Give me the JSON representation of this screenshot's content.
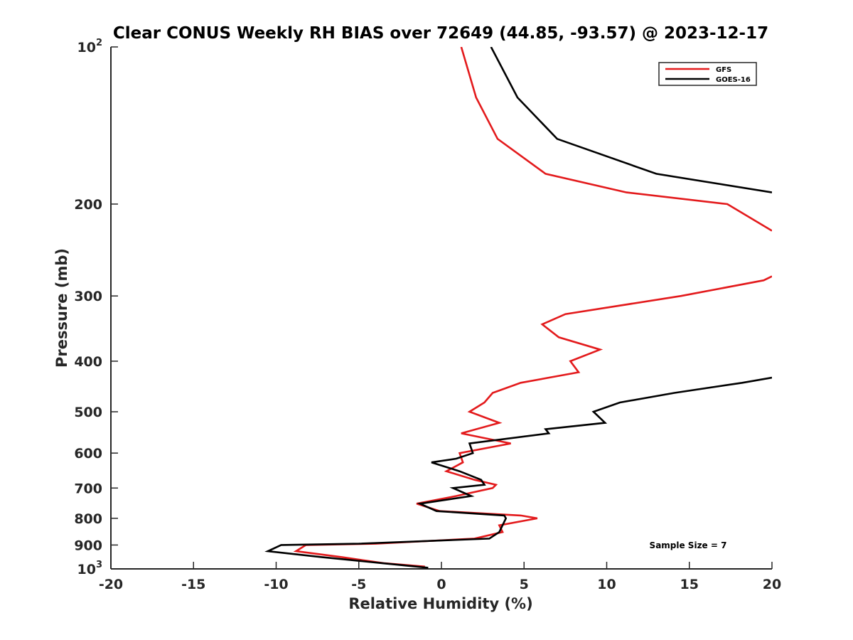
{
  "chart_data": {
    "type": "line",
    "title": "Clear CONUS Weekly RH BIAS over 72649 (44.85, -93.57) @ 2023-12-17",
    "xlabel": "Relative Humidity (%)",
    "ylabel": "Pressure (mb)",
    "xlim": [
      -20,
      20
    ],
    "ylim": [
      100,
      1000
    ],
    "y_scale": "log",
    "y_reversed": true,
    "grid": false,
    "legend_position": "top-right",
    "x_ticks": [
      "-20",
      "-15",
      "-10",
      "-5",
      "0",
      "5",
      "10",
      "15",
      "20"
    ],
    "y_ticks": [
      {
        "value": 100,
        "base": "10",
        "exp": "2"
      },
      {
        "value": 200,
        "label": "200"
      },
      {
        "value": 300,
        "label": "300"
      },
      {
        "value": 400,
        "label": "400"
      },
      {
        "value": 500,
        "label": "500"
      },
      {
        "value": 600,
        "label": "600"
      },
      {
        "value": 700,
        "label": "700"
      },
      {
        "value": 800,
        "label": "800"
      },
      {
        "value": 900,
        "label": "900"
      },
      {
        "value": 1000,
        "base": "10",
        "exp": "3"
      }
    ],
    "annotation": "Sample Size = 7",
    "series": [
      {
        "name": "GFS",
        "color": "#e31a1c",
        "segments": [
          [
            {
              "x": 1.2,
              "y": 100
            },
            {
              "x": 2.1,
              "y": 125
            },
            {
              "x": 3.4,
              "y": 150
            },
            {
              "x": 6.3,
              "y": 175
            },
            {
              "x": 11.2,
              "y": 190
            },
            {
              "x": 17.3,
              "y": 200
            },
            {
              "x": 20.0,
              "y": 225
            }
          ],
          [
            {
              "x": 20.0,
              "y": 275
            },
            {
              "x": 19.5,
              "y": 280
            },
            {
              "x": 14.5,
              "y": 300
            },
            {
              "x": 7.5,
              "y": 325
            },
            {
              "x": 6.1,
              "y": 340
            },
            {
              "x": 7.1,
              "y": 360
            },
            {
              "x": 9.6,
              "y": 380
            },
            {
              "x": 7.8,
              "y": 400
            },
            {
              "x": 8.3,
              "y": 420
            },
            {
              "x": 4.8,
              "y": 440
            },
            {
              "x": 3.1,
              "y": 460
            },
            {
              "x": 2.6,
              "y": 480
            },
            {
              "x": 1.7,
              "y": 500
            },
            {
              "x": 3.5,
              "y": 525
            },
            {
              "x": 1.2,
              "y": 550
            },
            {
              "x": 4.2,
              "y": 575
            },
            {
              "x": 1.1,
              "y": 600
            },
            {
              "x": 1.3,
              "y": 625
            },
            {
              "x": 0.3,
              "y": 650
            },
            {
              "x": 2.0,
              "y": 675
            },
            {
              "x": 3.3,
              "y": 690
            },
            {
              "x": 3.1,
              "y": 700
            },
            {
              "x": 0.9,
              "y": 725
            },
            {
              "x": -1.5,
              "y": 750
            },
            {
              "x": -0.1,
              "y": 775
            },
            {
              "x": 4.8,
              "y": 790
            },
            {
              "x": 5.8,
              "y": 800
            },
            {
              "x": 3.5,
              "y": 825
            },
            {
              "x": 3.7,
              "y": 850
            },
            {
              "x": 2.0,
              "y": 875
            },
            {
              "x": -4.0,
              "y": 895
            },
            {
              "x": -8.2,
              "y": 900
            },
            {
              "x": -8.8,
              "y": 925
            },
            {
              "x": -6.0,
              "y": 950
            },
            {
              "x": -3.5,
              "y": 975
            },
            {
              "x": -1.0,
              "y": 990
            }
          ]
        ]
      },
      {
        "name": "GOES-16",
        "color": "#000000",
        "segments": [
          [
            {
              "x": 3.0,
              "y": 100
            },
            {
              "x": 4.6,
              "y": 125
            },
            {
              "x": 7.0,
              "y": 150
            },
            {
              "x": 13.0,
              "y": 175
            },
            {
              "x": 20.0,
              "y": 190
            }
          ],
          [
            {
              "x": 20.0,
              "y": 430
            },
            {
              "x": 18.2,
              "y": 440
            },
            {
              "x": 14.1,
              "y": 460
            },
            {
              "x": 10.8,
              "y": 480
            },
            {
              "x": 9.2,
              "y": 500
            },
            {
              "x": 9.9,
              "y": 525
            },
            {
              "x": 6.3,
              "y": 540
            },
            {
              "x": 6.5,
              "y": 550
            },
            {
              "x": 1.7,
              "y": 575
            },
            {
              "x": 1.9,
              "y": 600
            },
            {
              "x": 0.9,
              "y": 615
            },
            {
              "x": -0.6,
              "y": 625
            },
            {
              "x": 1.1,
              "y": 650
            },
            {
              "x": 2.4,
              "y": 675
            },
            {
              "x": 2.6,
              "y": 690
            },
            {
              "x": 0.7,
              "y": 700
            },
            {
              "x": 1.8,
              "y": 725
            },
            {
              "x": -1.3,
              "y": 750
            },
            {
              "x": -0.3,
              "y": 775
            },
            {
              "x": 3.8,
              "y": 790
            },
            {
              "x": 3.9,
              "y": 800
            },
            {
              "x": 3.7,
              "y": 825
            },
            {
              "x": 3.5,
              "y": 850
            },
            {
              "x": 2.9,
              "y": 875
            },
            {
              "x": -5.0,
              "y": 895
            },
            {
              "x": -9.7,
              "y": 900
            },
            {
              "x": -10.5,
              "y": 925
            },
            {
              "x": -7.2,
              "y": 950
            },
            {
              "x": -3.6,
              "y": 975
            },
            {
              "x": -0.8,
              "y": 995
            }
          ]
        ]
      }
    ]
  }
}
